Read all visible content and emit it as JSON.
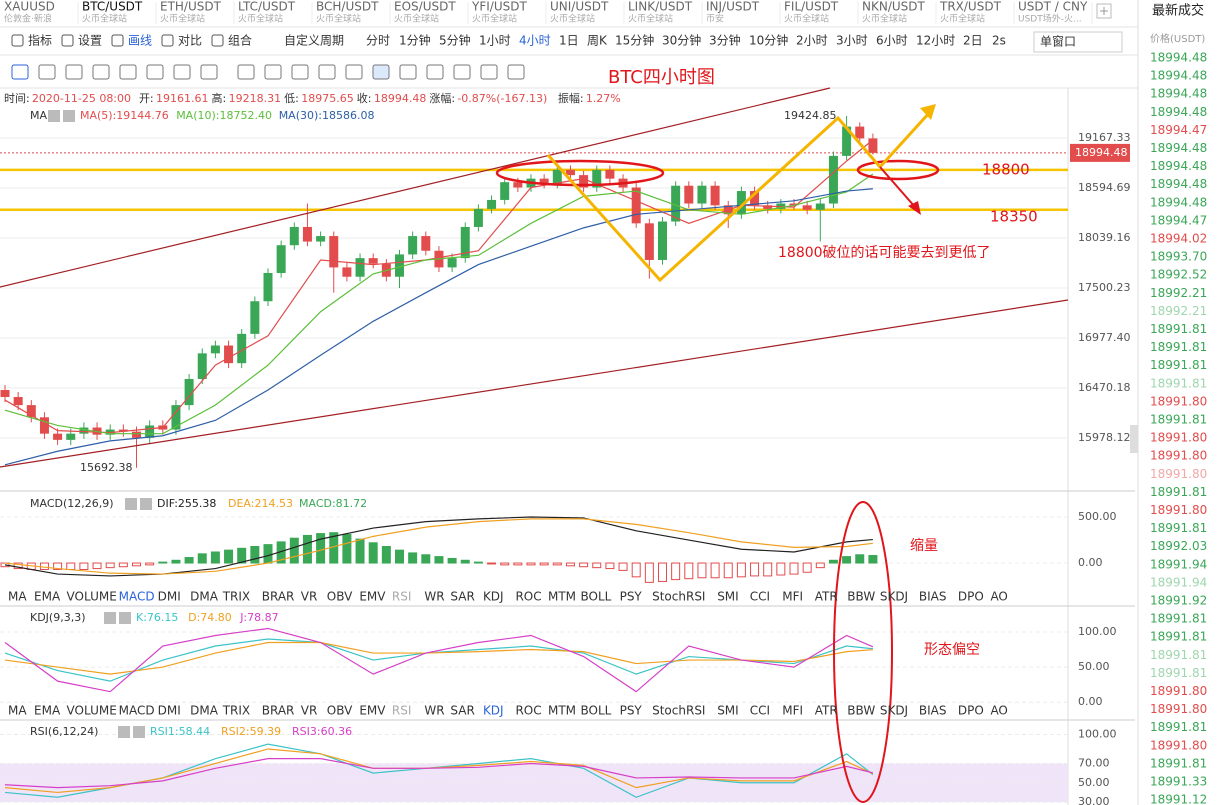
{
  "ticker_bar": [
    {
      "symbol": "XAUUSD",
      "exchange": "伦敦金·新浪"
    },
    {
      "symbol": "BTC/USDT",
      "exchange": "火币全球站"
    },
    {
      "symbol": "ETH/USDT",
      "exchange": "火币全球站"
    },
    {
      "symbol": "LTC/USDT",
      "exchange": "火币全球站"
    },
    {
      "symbol": "BCH/USDT",
      "exchange": "火币全球站"
    },
    {
      "symbol": "EOS/USDT",
      "exchange": "火币全球站"
    },
    {
      "symbol": "YFI/USDT",
      "exchange": "火币全球站"
    },
    {
      "symbol": "UNI/USDT",
      "exchange": "火币全球站"
    },
    {
      "symbol": "LINK/USDT",
      "exchange": "火币全球站"
    },
    {
      "symbol": "INJ/USDT",
      "exchange": "币安"
    },
    {
      "symbol": "FIL/USDT",
      "exchange": "火币全球站"
    },
    {
      "symbol": "NKN/USDT",
      "exchange": "火币全球站"
    },
    {
      "symbol": "TRX/USDT",
      "exchange": "火币全球站"
    },
    {
      "symbol": "USDT / CNY",
      "exchange": "USDT场外-火..."
    }
  ],
  "toolbar": {
    "tools": [
      "指标",
      "设置",
      "画线",
      "对比",
      "组合"
    ],
    "custom": "自定义周期",
    "periods": [
      "分时",
      "1分钟",
      "5分钟",
      "1小时",
      "4小时",
      "1日",
      "周K",
      "15分钟",
      "30分钟",
      "3分钟",
      "10分钟",
      "2小时",
      "3小时",
      "6小时",
      "12小时",
      "2日"
    ],
    "refresh": "2s",
    "window": "单窗口"
  },
  "indicator_tabs": [
    "MA",
    "EMA",
    "VOLUME",
    "MACD",
    "DMI",
    "DMA",
    "TRIX",
    "BRAR",
    "VR",
    "OBV",
    "EMV",
    "RSI",
    "WR",
    "SAR",
    "KDJ",
    "ROC",
    "MTM",
    "BOLL",
    "PSY",
    "StochRSI",
    "SMI",
    "CCI",
    "MFI",
    "ATR",
    "BBW",
    "SKDJ",
    "BIAS",
    "DPO",
    "AO"
  ],
  "trades": {
    "title": "最新成交",
    "header": "价格(USDT)",
    "prices": [
      "18994.48",
      "18994.48",
      "18994.48",
      "18994.48",
      "18994.47",
      "18994.48",
      "18994.48",
      "18994.48",
      "18994.48",
      "18994.47",
      "18994.02",
      "18993.70",
      "18992.52",
      "18992.21",
      "18992.21",
      "18991.81",
      "18991.81",
      "18991.81",
      "18991.81",
      "18991.80",
      "18991.81",
      "18991.80",
      "18991.80",
      "18991.80",
      "18991.81",
      "18991.80",
      "18991.81",
      "18992.03",
      "18991.94",
      "18991.94",
      "18991.92",
      "18991.81",
      "18991.81",
      "18991.81",
      "18991.81",
      "18991.80",
      "18991.80",
      "18991.81",
      "18991.80",
      "18991.81",
      "18991.33",
      "18991.12"
    ],
    "colors": [
      "#3aa757",
      "#3aa757",
      "#3aa757",
      "#3aa757",
      "#e24c4c",
      "#3aa757",
      "#3aa757",
      "#3aa757",
      "#3aa757",
      "#3aa757",
      "#e24c4c",
      "#3aa757",
      "#3aa757",
      "#3aa757",
      "#9fd6ae",
      "#3aa757",
      "#3aa757",
      "#3aa757",
      "#9fd6ae",
      "#e24c4c",
      "#3aa757",
      "#e24c4c",
      "#e24c4c",
      "#f0a8a8",
      "#3aa757",
      "#e24c4c",
      "#3aa757",
      "#3aa757",
      "#3aa757",
      "#9fd6ae",
      "#3aa757",
      "#3aa757",
      "#3aa757",
      "#9fd6ae",
      "#9fd6ae",
      "#e24c4c",
      "#e24c4c",
      "#3aa757",
      "#e24c4c",
      "#3aa757",
      "#3aa757",
      "#3aa757"
    ]
  },
  "annotations": {
    "note": "18800破位的话可能要去到更低了",
    "macd_note": "缩量",
    "kdj_note": "形态偏空"
  },
  "chart_data": [
    {
      "type": "candlestick",
      "title": "BTC四小时图",
      "header": "MA",
      "log_scale": true,
      "grid": true,
      "info": [
        {
          "label": "时间:",
          "value": "2020-11-25 08:00"
        },
        {
          "label": "开:",
          "value": "19161.61"
        },
        {
          "label": "高:",
          "value": "19218.31"
        },
        {
          "label": "低:",
          "value": "18975.65"
        },
        {
          "label": "收:",
          "value": "18994.48"
        },
        {
          "label": "涨幅:",
          "value": "-0.87%(-167.13)"
        },
        {
          "label": "振幅:",
          "value": "1.27%"
        }
      ],
      "up_color": "#3aa757",
      "down_color": "#e24c4c",
      "ylim": [
        15482,
        19733
      ],
      "yticks": [
        19167.33,
        18594.69,
        18039.16,
        17500.23,
        {
          "value": 16977.4,
          "label": "16977.40"
        },
        16470.18,
        15978.12
      ],
      "levels": [
        18800,
        18350
      ],
      "level_color": "#f5c400",
      "open": [
        16450,
        16380,
        16300,
        16180,
        16020,
        15960,
        16020,
        16080,
        16010,
        16060,
        16040,
        15980,
        16100,
        16060,
        16300,
        16560,
        16820,
        16900,
        16720,
        17020,
        17360,
        17660,
        17960,
        18160,
        18000,
        18060,
        17720,
        17620,
        17820,
        17760,
        17620,
        17860,
        18060,
        17900,
        17720,
        17820,
        18160,
        18360,
        18460,
        18660,
        18600,
        18700,
        18640,
        18800,
        18740,
        18600,
        18800,
        18700,
        18600,
        18200,
        17800,
        18220,
        18620,
        18420,
        18620,
        18400,
        18300,
        18560,
        18400,
        18360,
        18420,
        18400,
        18350,
        18420,
        18960,
        19300,
        19161.61
      ],
      "high": [
        16500,
        16430,
        16350,
        16230,
        16070,
        16070,
        16130,
        16130,
        16110,
        16110,
        16090,
        16150,
        16150,
        16350,
        16610,
        16870,
        16950,
        16950,
        17070,
        17410,
        17710,
        18010,
        18210,
        18420,
        18110,
        18110,
        17770,
        17870,
        17870,
        17810,
        17910,
        18110,
        18110,
        17950,
        17870,
        18210,
        18410,
        18510,
        18710,
        18710,
        18750,
        18750,
        18850,
        18850,
        18790,
        18850,
        18850,
        18750,
        18650,
        18250,
        18270,
        18670,
        18670,
        18670,
        18670,
        18450,
        18610,
        18610,
        18450,
        18470,
        18470,
        18450,
        18470,
        19010,
        19424.85,
        19350,
        19218.31
      ],
      "low": [
        16330,
        16250,
        16130,
        15970,
        15910,
        15910,
        15970,
        15960,
        15960,
        15990,
        15692.38,
        15930,
        16010,
        16010,
        16250,
        16510,
        16770,
        16670,
        16670,
        16970,
        17310,
        17610,
        17910,
        17950,
        17950,
        17450,
        17570,
        17570,
        17710,
        17570,
        17500,
        17810,
        17850,
        17670,
        17670,
        17770,
        18110,
        18310,
        18410,
        18550,
        18550,
        18590,
        18590,
        18690,
        18550,
        18550,
        18650,
        18550,
        18150,
        17600,
        17750,
        18170,
        18370,
        18370,
        18350,
        18150,
        18250,
        18350,
        18310,
        18310,
        18350,
        18300,
        18000,
        18370,
        18910,
        19110,
        18975.65
      ],
      "close": [
        16380,
        16300,
        16180,
        16020,
        15960,
        16020,
        16080,
        16010,
        16060,
        16040,
        15980,
        16100,
        16060,
        16300,
        16560,
        16820,
        16900,
        16720,
        17020,
        17360,
        17660,
        17960,
        18160,
        18000,
        18060,
        17720,
        17620,
        17820,
        17760,
        17620,
        17860,
        18060,
        17900,
        17720,
        17820,
        18160,
        18360,
        18460,
        18660,
        18600,
        18700,
        18640,
        18800,
        18740,
        18600,
        18800,
        18700,
        18600,
        18200,
        17800,
        18220,
        18620,
        18420,
        18620,
        18400,
        18300,
        18560,
        18400,
        18360,
        18420,
        18400,
        18350,
        18420,
        18960,
        19300,
        19161.61,
        18994.48
      ],
      "series": [
        {
          "name": "MA(5):19144.76",
          "color": "#e24c4c",
          "x": [
            0,
            4,
            8,
            12,
            16,
            20,
            24,
            28,
            32,
            36,
            40,
            44,
            48,
            52,
            56,
            60,
            64,
            66
          ],
          "values": [
            16350,
            16050,
            16030,
            16080,
            16700,
            17000,
            17800,
            17750,
            17800,
            17900,
            18600,
            18700,
            18450,
            18200,
            18400,
            18380,
            18900,
            19144.76
          ]
        },
        {
          "name": "MA(10):18752.40",
          "color": "#5cbf3a",
          "x": [
            0,
            4,
            8,
            12,
            16,
            20,
            24,
            28,
            32,
            36,
            40,
            44,
            48,
            52,
            56,
            60,
            64,
            66
          ],
          "values": [
            16250,
            16100,
            16020,
            16020,
            16300,
            16700,
            17250,
            17650,
            17800,
            17850,
            18200,
            18500,
            18560,
            18350,
            18300,
            18400,
            18550,
            18752.4
          ]
        },
        {
          "name": "MA(30):18586.08",
          "color": "#2e5fa8",
          "x": [
            0,
            4,
            8,
            12,
            16,
            20,
            24,
            28,
            32,
            36,
            40,
            44,
            48,
            52,
            56,
            60,
            64,
            66
          ],
          "values": [
            15720,
            15850,
            15950,
            16000,
            16150,
            16450,
            16800,
            17150,
            17450,
            17750,
            17950,
            18150,
            18300,
            18350,
            18400,
            18450,
            18560,
            18586.08
          ]
        }
      ]
    },
    {
      "type": "macd",
      "title": "MACD(12,26,9)",
      "ylim": [
        -293,
        772
      ],
      "yticks": [
        {
          "value": 500,
          "label": "500.00"
        },
        {
          "value": 0,
          "label": "0.00"
        }
      ],
      "histogram": {
        "name": "MACD:81.72",
        "color": "#3aa757",
        "neg_color": "#e24c4c",
        "values": [
          -40,
          -60,
          -70,
          -70,
          -70,
          -70,
          -70,
          -60,
          -50,
          -40,
          -30,
          -20,
          10,
          30,
          60,
          100,
          120,
          140,
          160,
          180,
          200,
          230,
          270,
          300,
          320,
          330,
          310,
          260,
          220,
          180,
          140,
          110,
          90,
          70,
          50,
          30,
          10,
          -10,
          -20,
          -20,
          -20,
          -20,
          -20,
          -30,
          -40,
          -50,
          -60,
          -80,
          -150,
          -210,
          -200,
          -180,
          -170,
          -160,
          -160,
          -160,
          -150,
          -140,
          -140,
          -130,
          -120,
          -100,
          -50,
          30,
          70,
          90,
          81.72
        ]
      },
      "series": [
        {
          "name": "DIF:255.38",
          "color": "#222222",
          "x": [
            0,
            4,
            8,
            12,
            16,
            20,
            24,
            28,
            32,
            36,
            40,
            44,
            48,
            52,
            56,
            60,
            64,
            66
          ],
          "values": [
            -20,
            -120,
            -140,
            -120,
            -60,
            80,
            260,
            380,
            450,
            480,
            500,
            490,
            350,
            250,
            150,
            120,
            230,
            255.38
          ]
        },
        {
          "name": "DEA:214.53",
          "color": "#f0a020",
          "x": [
            0,
            4,
            8,
            12,
            16,
            20,
            24,
            28,
            32,
            36,
            40,
            44,
            48,
            52,
            56,
            60,
            64,
            66
          ],
          "values": [
            0,
            -60,
            -110,
            -120,
            -90,
            0,
            140,
            290,
            390,
            450,
            480,
            480,
            420,
            330,
            230,
            170,
            180,
            214.53
          ]
        }
      ]
    },
    {
      "type": "line",
      "title": "KDJ(9,3,3)",
      "ylim": [
        -4,
        137
      ],
      "yticks": [
        {
          "value": 100,
          "label": "100.00"
        },
        {
          "value": 50,
          "label": "50.00"
        },
        {
          "value": 0,
          "label": "0.00"
        }
      ],
      "series": [
        {
          "name": "K:76.15",
          "color": "#3cc3c8",
          "x": [
            0,
            4,
            8,
            12,
            16,
            20,
            24,
            28,
            32,
            36,
            40,
            44,
            48,
            52,
            56,
            60,
            64,
            66
          ],
          "values": [
            70,
            45,
            30,
            60,
            80,
            90,
            85,
            60,
            70,
            75,
            80,
            70,
            40,
            65,
            60,
            55,
            80,
            76.15
          ]
        },
        {
          "name": "D:74.80",
          "color": "#f0a020",
          "x": [
            0,
            4,
            8,
            12,
            16,
            20,
            24,
            28,
            32,
            36,
            40,
            44,
            48,
            52,
            56,
            60,
            64,
            66
          ],
          "values": [
            60,
            50,
            40,
            50,
            70,
            85,
            85,
            70,
            70,
            72,
            75,
            72,
            55,
            60,
            60,
            58,
            72,
            74.8
          ]
        },
        {
          "name": "J:78.87",
          "color": "#d63fc8",
          "x": [
            0,
            4,
            8,
            12,
            16,
            20,
            24,
            28,
            32,
            36,
            40,
            44,
            48,
            52,
            56,
            60,
            64,
            66
          ],
          "values": [
            85,
            30,
            15,
            80,
            95,
            105,
            85,
            40,
            70,
            85,
            95,
            65,
            15,
            80,
            60,
            50,
            95,
            78.87
          ]
        }
      ]
    },
    {
      "type": "line",
      "title": "RSI(6,12,24)",
      "ylim": [
        27,
        115
      ],
      "band": [
        30,
        70
      ],
      "band_color": "#f0e4f8",
      "yticks": [
        {
          "value": 100,
          "label": "100.00"
        },
        {
          "value": 70,
          "label": "70.00"
        },
        {
          "value": 50,
          "label": "50.00"
        },
        {
          "value": 30,
          "label": "30.00"
        }
      ],
      "series": [
        {
          "name": "RSI1:58.44",
          "color": "#3cc3c8",
          "x": [
            0,
            4,
            8,
            12,
            16,
            20,
            24,
            28,
            32,
            36,
            40,
            44,
            48,
            52,
            56,
            60,
            64,
            66
          ],
          "values": [
            40,
            35,
            45,
            55,
            75,
            90,
            80,
            60,
            65,
            70,
            75,
            65,
            35,
            55,
            50,
            50,
            80,
            58.44
          ]
        },
        {
          "name": "RSI2:59.39",
          "color": "#f0a020",
          "x": [
            0,
            4,
            8,
            12,
            16,
            20,
            24,
            28,
            32,
            36,
            40,
            44,
            48,
            52,
            56,
            60,
            64,
            66
          ],
          "values": [
            45,
            40,
            45,
            55,
            70,
            85,
            80,
            65,
            65,
            68,
            72,
            68,
            45,
            55,
            52,
            52,
            72,
            59.39
          ]
        },
        {
          "name": "RSI3:60.36",
          "color": "#d63fc8",
          "x": [
            0,
            4,
            8,
            12,
            16,
            20,
            24,
            28,
            32,
            36,
            40,
            44,
            48,
            52,
            56,
            60,
            64,
            66
          ],
          "values": [
            48,
            45,
            47,
            52,
            65,
            75,
            75,
            65,
            65,
            66,
            70,
            67,
            55,
            56,
            55,
            55,
            67,
            60.36
          ]
        }
      ]
    }
  ]
}
